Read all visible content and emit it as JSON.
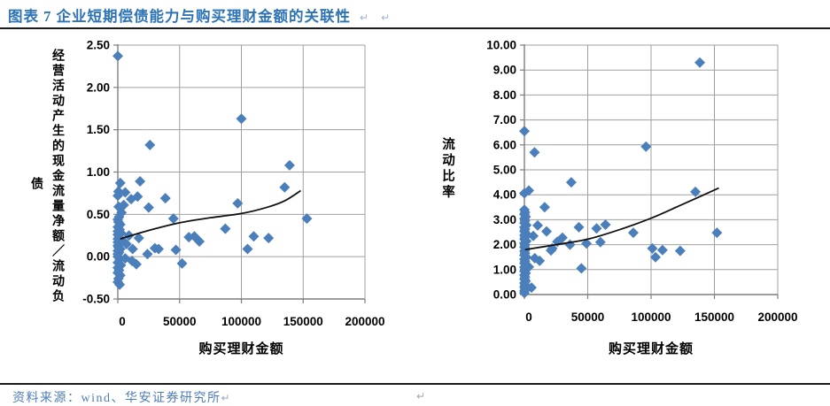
{
  "figure": {
    "title": "图表 7  企业短期偿债能力与购买理财金额的关联性",
    "source": "资料来源：wind、华安证券研究所",
    "paragraph_mark": "↵"
  },
  "colors": {
    "title_blue": "#2E74B5",
    "source_blue": "#4E7CBA",
    "marker_blue": "#4B7FBC",
    "grid_gray": "#A0A0A0",
    "axis_gray": "#7F7F7F",
    "trend_color": "#111111"
  },
  "chart_data": [
    {
      "type": "scatter",
      "xlabel": "购买理财金额",
      "ylabel": "经营活动产生的现金流量净额／流动负债",
      "xlim": [
        0,
        200000
      ],
      "ylim": [
        -0.5,
        2.5
      ],
      "x_ticks": [
        0,
        50000,
        100000,
        150000,
        200000
      ],
      "y_ticks": [
        "2.50",
        "2.00",
        "1.50",
        "1.00",
        "0.50",
        "0.00",
        "-0.50"
      ],
      "legend": "none",
      "grid": true,
      "points": [
        [
          0,
          2.37
        ],
        [
          100000,
          1.63
        ],
        [
          26000,
          1.32
        ],
        [
          139000,
          1.08
        ],
        [
          135000,
          0.82
        ],
        [
          153000,
          0.45
        ],
        [
          97000,
          0.63
        ],
        [
          87000,
          0.33
        ],
        [
          110000,
          0.24
        ],
        [
          122000,
          0.22
        ],
        [
          105000,
          0.09
        ],
        [
          57500,
          0.23
        ],
        [
          62000,
          0.24
        ],
        [
          66000,
          0.18
        ],
        [
          52000,
          -0.08
        ],
        [
          45000,
          0.45
        ],
        [
          47000,
          0.08
        ],
        [
          38500,
          0.69
        ],
        [
          33000,
          0.09
        ],
        [
          30000,
          0.1
        ],
        [
          25000,
          0.58
        ],
        [
          24000,
          0.03
        ],
        [
          18000,
          0.89
        ],
        [
          17000,
          0.22
        ],
        [
          16000,
          0.71
        ],
        [
          15000,
          -0.09
        ],
        [
          12000,
          0.09
        ],
        [
          11500,
          -0.05
        ],
        [
          10800,
          0.68
        ],
        [
          9000,
          0.25
        ],
        [
          7000,
          0.15
        ],
        [
          6000,
          0.76
        ],
        [
          6000,
          -0.02
        ],
        [
          4800,
          0.61
        ],
        [
          3000,
          0.52
        ],
        [
          3000,
          0.2
        ],
        [
          2500,
          0.28
        ],
        [
          2500,
          -0.1
        ],
        [
          2000,
          0.87
        ],
        [
          2000,
          0.38
        ],
        [
          2000,
          0.09
        ],
        [
          2000,
          -0.22
        ],
        [
          1500,
          0.32
        ],
        [
          1500,
          0.15
        ],
        [
          1500,
          -0.03
        ],
        [
          1500,
          -0.33
        ],
        [
          1000,
          0.47
        ],
        [
          1000,
          0.23
        ],
        [
          1000,
          0.05
        ],
        [
          1000,
          -0.16
        ],
        [
          700,
          0.59
        ],
        [
          500,
          0.77
        ],
        [
          500,
          0.41
        ],
        [
          500,
          0.11
        ],
        [
          500,
          -0.26
        ],
        [
          0,
          0.72
        ],
        [
          0,
          0.44
        ],
        [
          0,
          0.35
        ],
        [
          0,
          0.3
        ],
        [
          0,
          0.26
        ],
        [
          0,
          0.21
        ],
        [
          0,
          0.17
        ],
        [
          0,
          0.13
        ],
        [
          0,
          0.07
        ],
        [
          0,
          0.03
        ],
        [
          0,
          0.0
        ],
        [
          0,
          -0.07
        ],
        [
          0,
          -0.13
        ],
        [
          0,
          -0.19
        ],
        [
          0,
          -0.3
        ]
      ],
      "trend": [
        [
          2000,
          0.21
        ],
        [
          25000,
          0.31
        ],
        [
          50000,
          0.4
        ],
        [
          75000,
          0.46
        ],
        [
          100000,
          0.51
        ],
        [
          120000,
          0.58
        ],
        [
          135000,
          0.66
        ],
        [
          148000,
          0.78
        ]
      ]
    },
    {
      "type": "scatter",
      "xlabel": "购买理财金额",
      "ylabel": "流动比率",
      "xlim": [
        0,
        200000
      ],
      "ylim": [
        0,
        10
      ],
      "x_ticks": [
        0,
        50000,
        100000,
        150000,
        200000
      ],
      "y_ticks": [
        "10.00",
        "9.00",
        "8.00",
        "7.00",
        "6.00",
        "5.00",
        "4.00",
        "3.00",
        "2.00",
        "1.00",
        "0.00"
      ],
      "legend": "none",
      "grid": true,
      "points": [
        [
          138500,
          9.3
        ],
        [
          96000,
          5.93
        ],
        [
          8000,
          5.7
        ],
        [
          0,
          6.55
        ],
        [
          37000,
          4.5
        ],
        [
          3500,
          4.17
        ],
        [
          0,
          4.06
        ],
        [
          135000,
          4.12
        ],
        [
          16000,
          3.5
        ],
        [
          10500,
          2.77
        ],
        [
          7000,
          2.35
        ],
        [
          17500,
          2.53
        ],
        [
          26000,
          2.12
        ],
        [
          21000,
          1.77
        ],
        [
          30000,
          2.28
        ],
        [
          36000,
          2.0
        ],
        [
          43000,
          2.7
        ],
        [
          49000,
          2.05
        ],
        [
          57000,
          2.65
        ],
        [
          60000,
          2.1
        ],
        [
          64000,
          2.8
        ],
        [
          86000,
          2.48
        ],
        [
          101000,
          1.85
        ],
        [
          103500,
          1.5
        ],
        [
          109000,
          1.78
        ],
        [
          123000,
          1.75
        ],
        [
          152000,
          2.48
        ],
        [
          45000,
          1.05
        ],
        [
          22000,
          1.85
        ],
        [
          12000,
          1.35
        ],
        [
          8200,
          1.46
        ],
        [
          5600,
          0.28
        ],
        [
          3500,
          1.11
        ],
        [
          0,
          3.4
        ],
        [
          500,
          3.3
        ],
        [
          0,
          3.22
        ],
        [
          1000,
          3.12
        ],
        [
          0,
          3.04
        ],
        [
          500,
          2.95
        ],
        [
          0,
          2.87
        ],
        [
          1500,
          2.78
        ],
        [
          0,
          2.7
        ],
        [
          500,
          2.62
        ],
        [
          0,
          2.54
        ],
        [
          1000,
          2.46
        ],
        [
          0,
          2.38
        ],
        [
          500,
          2.3
        ],
        [
          0,
          2.22
        ],
        [
          1500,
          2.14
        ],
        [
          0,
          2.06
        ],
        [
          500,
          1.98
        ],
        [
          0,
          1.9
        ],
        [
          1000,
          1.82
        ],
        [
          0,
          1.74
        ],
        [
          500,
          1.66
        ],
        [
          0,
          1.58
        ],
        [
          1500,
          1.5
        ],
        [
          0,
          1.42
        ],
        [
          500,
          1.34
        ],
        [
          0,
          1.26
        ],
        [
          1000,
          1.18
        ],
        [
          0,
          1.1
        ],
        [
          500,
          1.02
        ],
        [
          0,
          0.94
        ],
        [
          1000,
          0.86
        ],
        [
          0,
          0.78
        ],
        [
          500,
          0.7
        ],
        [
          0,
          0.62
        ],
        [
          1000,
          0.54
        ],
        [
          0,
          0.46
        ],
        [
          500,
          0.38
        ],
        [
          0,
          0.3
        ],
        [
          500,
          0.22
        ],
        [
          0,
          0.14
        ],
        [
          0,
          0.06
        ]
      ],
      "trend": [
        [
          500,
          1.8
        ],
        [
          25000,
          2.0
        ],
        [
          50000,
          2.22
        ],
        [
          75000,
          2.6
        ],
        [
          100000,
          3.06
        ],
        [
          125000,
          3.62
        ],
        [
          153500,
          4.27
        ]
      ]
    }
  ]
}
